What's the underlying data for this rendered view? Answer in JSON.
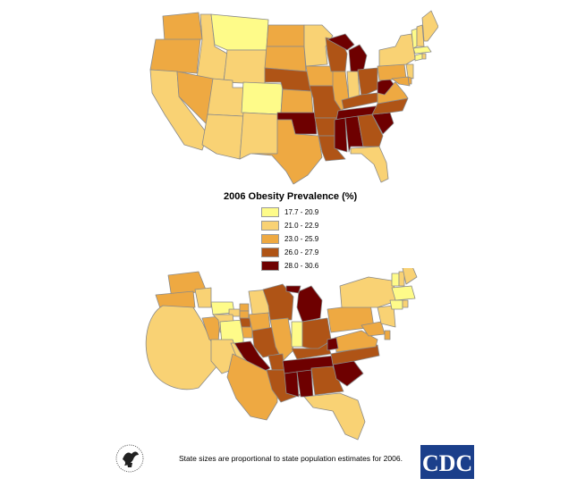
{
  "legend": {
    "title": "2006 Obesity Prevalence (%)",
    "classes": [
      {
        "label": "17.7 - 20.9",
        "color": "#FEFB89"
      },
      {
        "label": "21.0 - 22.9",
        "color": "#F9D274"
      },
      {
        "label": "23.0 - 25.9",
        "color": "#EEA942"
      },
      {
        "label": "26.0 - 27.9",
        "color": "#AF5416"
      },
      {
        "label": "28.0 - 30.6",
        "color": "#6E0000"
      }
    ]
  },
  "footnote": "State sizes are proportional to state population estimates for 2006.",
  "logos": {
    "cdc": "CDC",
    "hhs": "hhs-eagle-seal"
  }
}
